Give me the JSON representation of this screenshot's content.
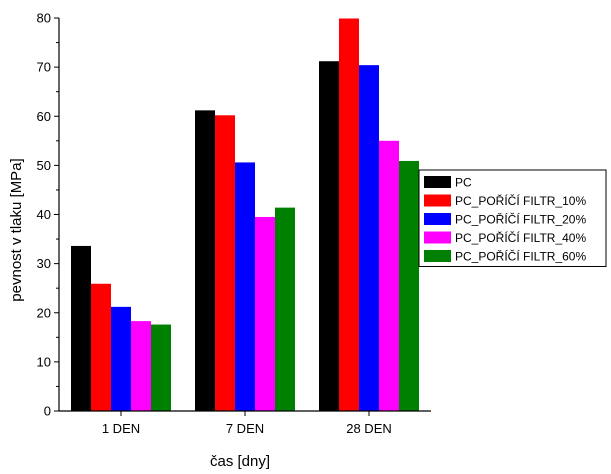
{
  "chart_data": {
    "type": "bar",
    "title": "",
    "xlabel": "čas [dny]",
    "ylabel": "pevnost v tlaku [MPa]",
    "ylim": [
      0,
      80
    ],
    "yticks": [
      "0",
      "10",
      "20",
      "30",
      "40",
      "50",
      "60",
      "70",
      "80"
    ],
    "categories": [
      "1 DEN",
      "7 DEN",
      "28 DEN"
    ],
    "series": [
      {
        "name": "PC",
        "color": "#000000",
        "values": [
          33.6,
          61.2,
          71.2
        ]
      },
      {
        "name": "PC_POŘÍČÍ FILTR_10%",
        "color": "#ff0000",
        "values": [
          25.9,
          60.2,
          79.9
        ]
      },
      {
        "name": "PC_POŘÍČÍ FILTR_20%",
        "color": "#0000ff",
        "values": [
          21.2,
          50.6,
          70.4
        ]
      },
      {
        "name": "PC_POŘÍČÍ FILTR_40%",
        "color": "#ff00ff",
        "values": [
          18.3,
          39.5,
          55.0
        ]
      },
      {
        "name": "PC_POŘÍČÍ FILTR_60%",
        "color": "#008000",
        "values": [
          17.6,
          41.4,
          50.9
        ]
      }
    ],
    "legend_position": "right",
    "grid": false
  }
}
